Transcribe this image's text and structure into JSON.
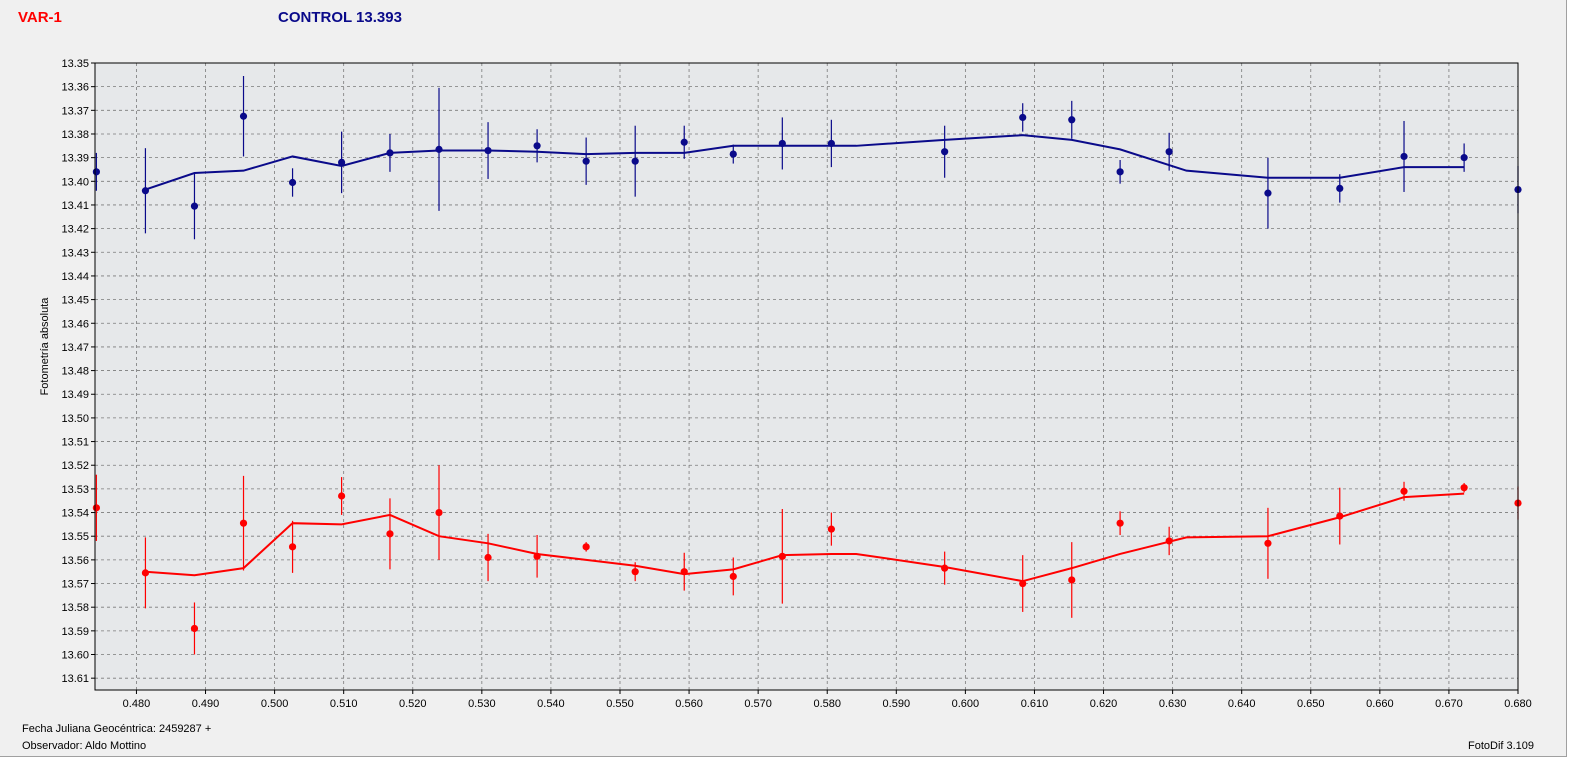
{
  "header": {
    "variable_label": "VAR-1",
    "control_label": "CONTROL 13.393"
  },
  "footer": {
    "julian_date": "Fecha Juliana Geocéntrica: 2459287 +",
    "observer": "Observador: Aldo Mottino",
    "software": "FotoDif 3.109"
  },
  "colors": {
    "control": "#0a0a8a",
    "variable": "#ff0000",
    "plot_background": "#e6e8ea",
    "grid": "#7a7a7a"
  },
  "chart_data": {
    "type": "scatter",
    "ylabel": "Fotometría absoluta",
    "xlabel": "",
    "xlim": [
      0.474,
      0.68
    ],
    "ylim": [
      13.35,
      13.615
    ],
    "y_inverted": true,
    "grid": true,
    "x_ticks": [
      "0.480",
      "0.490",
      "0.500",
      "0.510",
      "0.520",
      "0.530",
      "0.540",
      "0.550",
      "0.560",
      "0.570",
      "0.580",
      "0.590",
      "0.600",
      "0.610",
      "0.620",
      "0.630",
      "0.640",
      "0.650",
      "0.660",
      "0.670",
      "0.680"
    ],
    "y_ticks": [
      "13.35",
      "13.36",
      "13.37",
      "13.38",
      "13.39",
      "13.40",
      "13.41",
      "13.42",
      "13.43",
      "13.44",
      "13.45",
      "13.46",
      "13.47",
      "13.48",
      "13.49",
      "13.50",
      "13.51",
      "13.52",
      "13.53",
      "13.54",
      "13.55",
      "13.56",
      "13.57",
      "13.58",
      "13.59",
      "13.60",
      "13.61"
    ],
    "series": [
      {
        "color": "#0a0a8a",
        "x": [
          0.4742,
          0.4813,
          0.4884,
          0.4955,
          0.5026,
          0.5097,
          0.5167,
          0.5238,
          0.5309,
          0.538,
          0.5451,
          0.5522,
          0.5593,
          0.5664,
          0.5735,
          0.5806,
          0.597,
          0.6083,
          0.6154,
          0.6224,
          0.6295,
          0.6438,
          0.6542,
          0.6635,
          0.6722,
          0.68
        ],
        "y": [
          13.396,
          13.404,
          13.4105,
          13.3725,
          13.4005,
          13.392,
          13.388,
          13.3865,
          13.387,
          13.385,
          13.3915,
          13.3915,
          13.3835,
          13.3885,
          13.384,
          13.384,
          13.3875,
          13.373,
          13.374,
          13.396,
          13.3875,
          13.405,
          13.403,
          13.3895,
          13.39,
          13.4035
        ],
        "err": [
          0.008,
          0.018,
          0.014,
          0.017,
          0.006,
          0.013,
          0.008,
          0.026,
          0.012,
          0.007,
          0.01,
          0.015,
          0.007,
          0.004,
          0.011,
          0.01,
          0.011,
          0.006,
          0.008,
          0.005,
          0.008,
          0.015,
          0.006,
          0.015,
          0.006,
          0.01
        ],
        "trend_x": [
          0.4813,
          0.4884,
          0.4955,
          0.5026,
          0.5097,
          0.5167,
          0.5238,
          0.5309,
          0.538,
          0.5451,
          0.5522,
          0.5593,
          0.5664,
          0.5735,
          0.5806,
          0.5842,
          0.597,
          0.6083,
          0.6154,
          0.6224,
          0.632,
          0.6438,
          0.6542,
          0.6635,
          0.6722
        ],
        "trend_y": [
          13.4035,
          13.3965,
          13.3955,
          13.3895,
          13.3935,
          13.388,
          13.387,
          13.387,
          13.3875,
          13.3885,
          13.388,
          13.388,
          13.385,
          13.385,
          13.385,
          13.385,
          13.3825,
          13.3805,
          13.3825,
          13.3865,
          13.3955,
          13.3985,
          13.3985,
          13.394,
          13.394
        ]
      },
      {
        "color": "#ff0000",
        "x": [
          0.4742,
          0.4813,
          0.4884,
          0.4955,
          0.5026,
          0.5097,
          0.5167,
          0.5238,
          0.5309,
          0.538,
          0.5451,
          0.5522,
          0.5593,
          0.5664,
          0.5735,
          0.5806,
          0.597,
          0.6083,
          0.6154,
          0.6224,
          0.6295,
          0.6438,
          0.6542,
          0.6635,
          0.6722,
          0.68
        ],
        "y": [
          13.538,
          13.5655,
          13.589,
          13.5445,
          13.5545,
          13.533,
          13.549,
          13.54,
          13.559,
          13.5585,
          13.5545,
          13.565,
          13.565,
          13.567,
          13.5585,
          13.547,
          13.5635,
          13.57,
          13.5685,
          13.5445,
          13.552,
          13.553,
          13.5415,
          13.531,
          13.5295,
          13.536
        ],
        "err": [
          0.014,
          0.015,
          0.011,
          0.02,
          0.011,
          0.008,
          0.015,
          0.02,
          0.01,
          0.009,
          0.002,
          0.004,
          0.008,
          0.008,
          0.02,
          0.007,
          0.007,
          0.012,
          0.016,
          0.005,
          0.006,
          0.015,
          0.012,
          0.004,
          0.002,
          0.007
        ],
        "trend_x": [
          0.4813,
          0.4884,
          0.4955,
          0.5026,
          0.5097,
          0.5167,
          0.5238,
          0.5309,
          0.538,
          0.5451,
          0.5522,
          0.5593,
          0.5664,
          0.5735,
          0.5806,
          0.5842,
          0.597,
          0.6083,
          0.6154,
          0.6224,
          0.632,
          0.6438,
          0.6542,
          0.6635,
          0.6722
        ],
        "trend_y": [
          13.565,
          13.5665,
          13.5635,
          13.5445,
          13.545,
          13.541,
          13.55,
          13.553,
          13.5575,
          13.56,
          13.5625,
          13.566,
          13.564,
          13.558,
          13.5575,
          13.5575,
          13.563,
          13.569,
          13.5635,
          13.5575,
          13.5505,
          13.55,
          13.542,
          13.5335,
          13.532
        ]
      }
    ]
  }
}
